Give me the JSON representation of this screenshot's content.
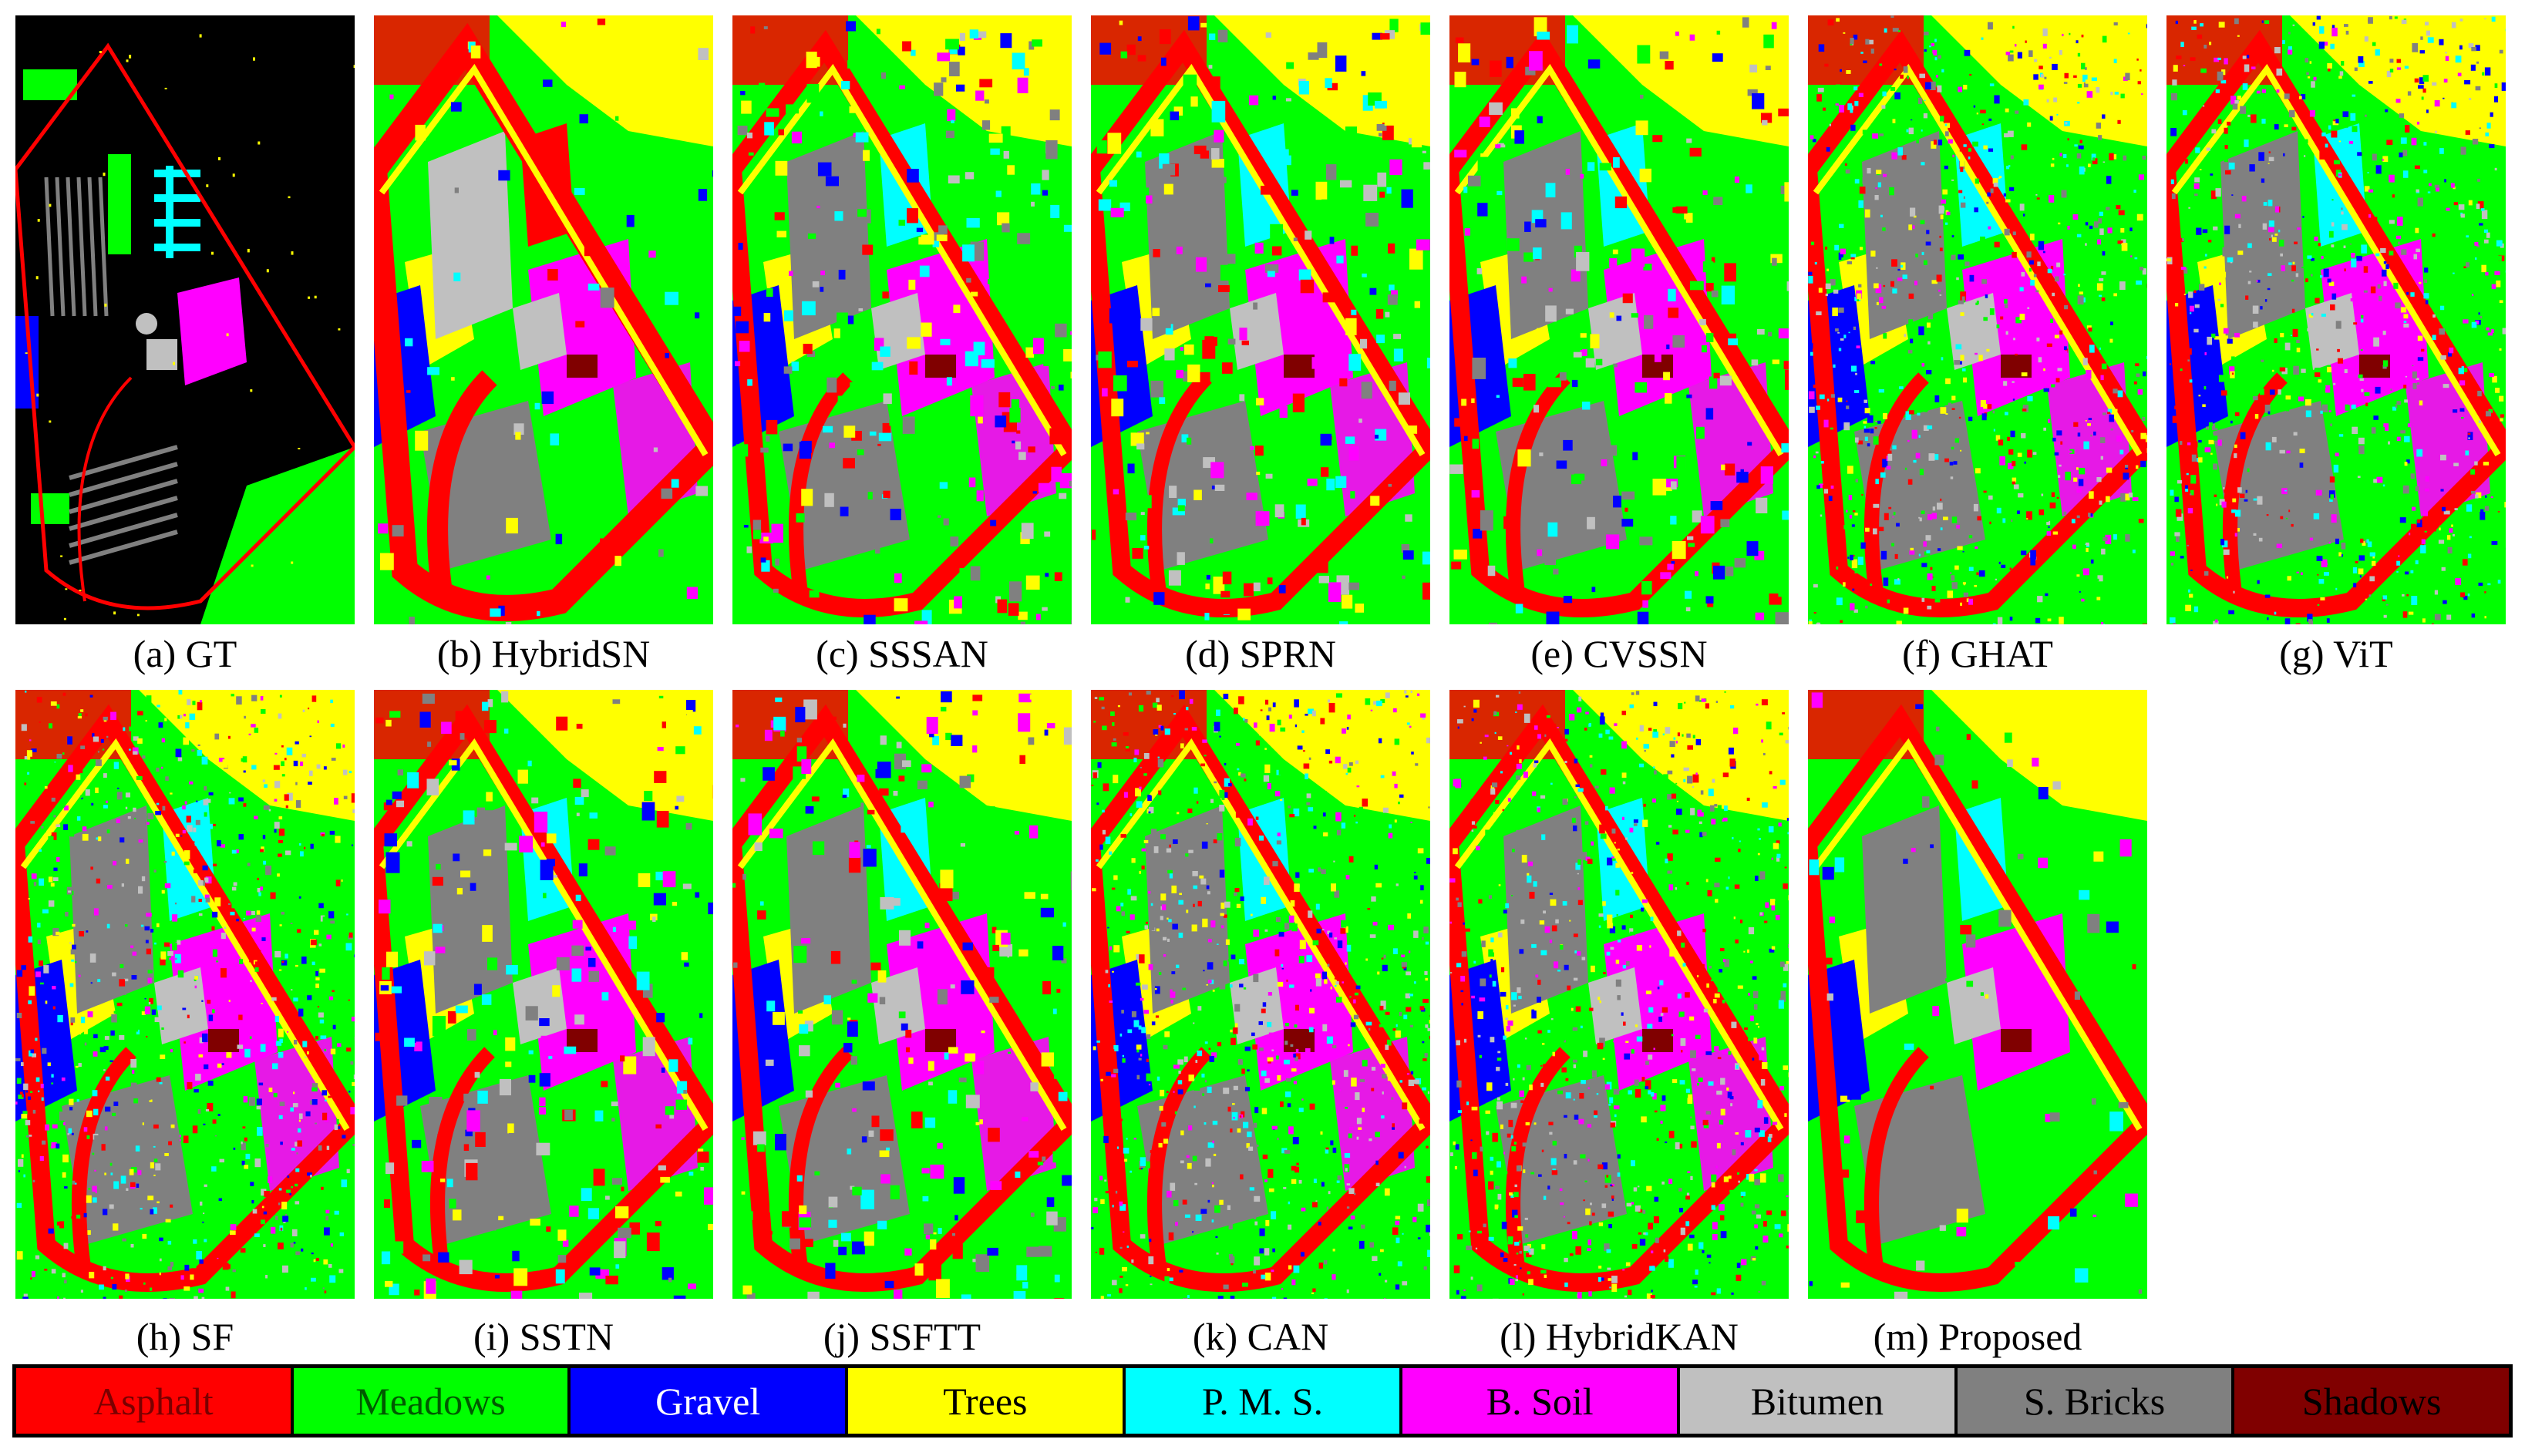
{
  "figure": {
    "panels": [
      {
        "id": "gt",
        "caption": "(a) GT",
        "style": "gt"
      },
      {
        "id": "hybridsn",
        "caption": "(b) HybridSN",
        "style": "coarse"
      },
      {
        "id": "sssan",
        "caption": "(c) SSSAN",
        "style": "medium"
      },
      {
        "id": "sprn",
        "caption": "(d) SPRN",
        "style": "medium"
      },
      {
        "id": "cvssn",
        "caption": "(e) CVSSN",
        "style": "medium"
      },
      {
        "id": "ghat",
        "caption": "(f) GHAT",
        "style": "noisy"
      },
      {
        "id": "vit",
        "caption": "(g) ViT",
        "style": "noisy"
      },
      {
        "id": "sf",
        "caption": "(h) SF",
        "style": "noisy"
      },
      {
        "id": "sstn",
        "caption": "(i) SSTN",
        "style": "medium"
      },
      {
        "id": "ssftt",
        "caption": "(j) SSFTT",
        "style": "medium"
      },
      {
        "id": "can",
        "caption": "(k) CAN",
        "style": "noisy"
      },
      {
        "id": "hybridkan",
        "caption": "(l) HybridKAN",
        "style": "noisy"
      },
      {
        "id": "proposed",
        "caption": "(m) Proposed",
        "style": "clean"
      }
    ],
    "legend": [
      {
        "label": "Asphalt",
        "color": "#ff0000",
        "text_color": "#7a0000"
      },
      {
        "label": "Meadows",
        "color": "#00ff00",
        "text_color": "#005a00"
      },
      {
        "label": "Gravel",
        "color": "#0000ff",
        "text_color": "#ffffff"
      },
      {
        "label": "Trees",
        "color": "#ffff00",
        "text_color": "#000000"
      },
      {
        "label": "P. M. S.",
        "color": "#00ffff",
        "text_color": "#000000"
      },
      {
        "label": "B. Soil",
        "color": "#ff00ff",
        "text_color": "#000000"
      },
      {
        "label": "Bitumen",
        "color": "#c0c0c0",
        "text_color": "#000000"
      },
      {
        "label": "S. Bricks",
        "color": "#808080",
        "text_color": "#000000"
      },
      {
        "label": "Shadows",
        "color": "#800000",
        "text_color": "#000000"
      }
    ]
  }
}
